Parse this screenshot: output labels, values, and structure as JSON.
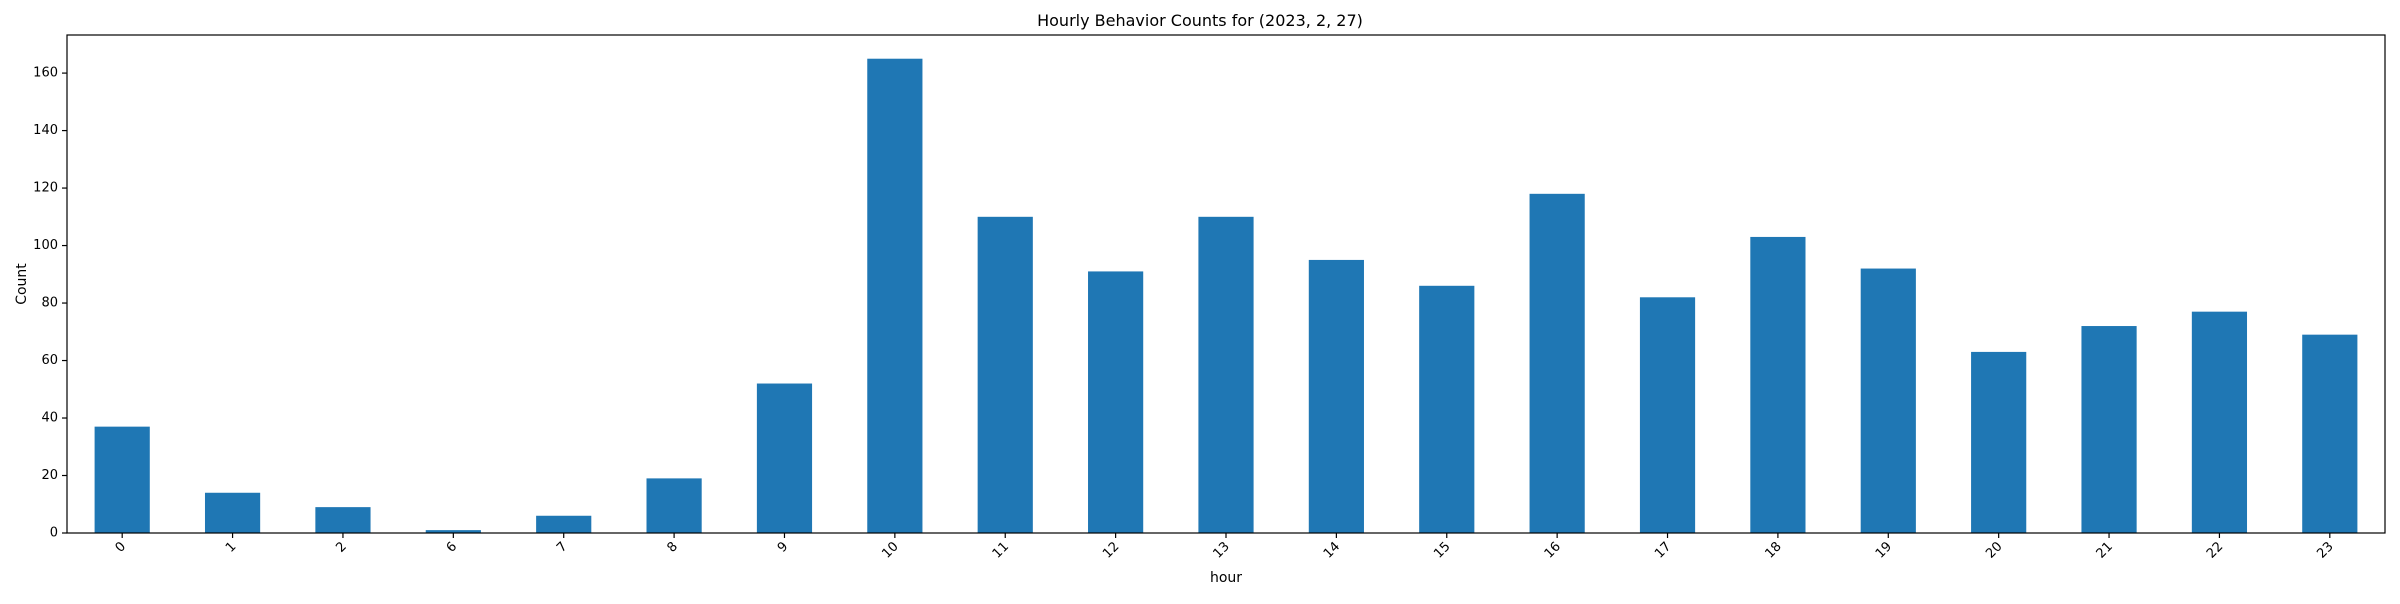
{
  "chart_data": {
    "type": "bar",
    "title": "Hourly Behavior Counts for (2023, 2, 27)",
    "xlabel": "hour",
    "ylabel": "Count",
    "categories": [
      "0",
      "1",
      "2",
      "6",
      "7",
      "8",
      "9",
      "10",
      "11",
      "12",
      "13",
      "14",
      "15",
      "16",
      "17",
      "18",
      "19",
      "20",
      "21",
      "22",
      "23"
    ],
    "values": [
      37,
      14,
      9,
      1,
      6,
      19,
      52,
      165,
      110,
      91,
      110,
      95,
      86,
      118,
      82,
      103,
      92,
      63,
      72,
      77,
      69
    ],
    "ylim": [
      0,
      173.25
    ],
    "yticks": [
      "0",
      "20",
      "40",
      "60",
      "80",
      "100",
      "120",
      "140",
      "160"
    ],
    "bar_color": "#1f77b4",
    "grid": false,
    "legend": false
  }
}
